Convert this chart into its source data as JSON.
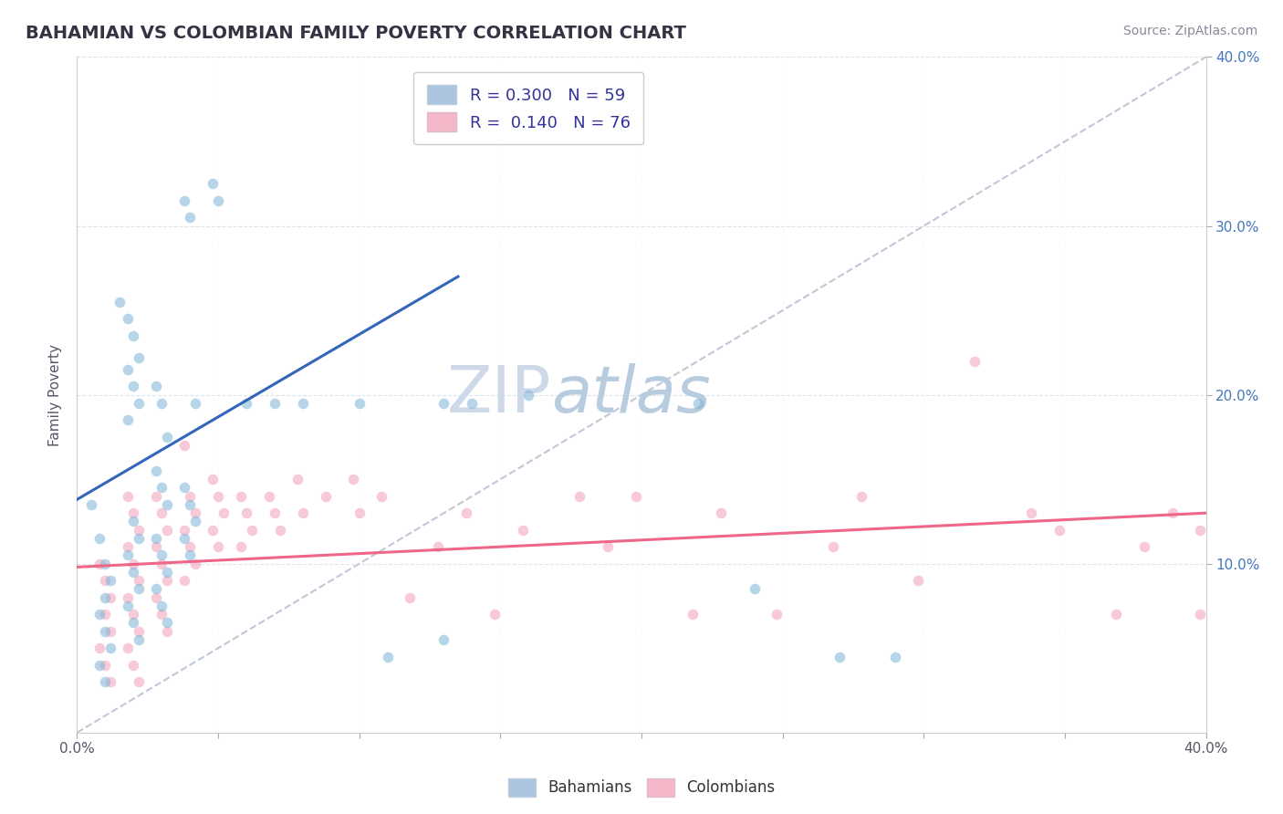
{
  "title": "BAHAMIAN VS COLOMBIAN FAMILY POVERTY CORRELATION CHART",
  "source_text": "Source: ZipAtlas.com",
  "ylabel": "Family Poverty",
  "legend_entries": [
    {
      "label": "R = 0.300   N = 59",
      "color": "#aac4e0"
    },
    {
      "label": "R =  0.140   N = 76",
      "color": "#f4b8c8"
    }
  ],
  "legend_bottom": [
    {
      "label": "Bahamians",
      "color": "#aac4e0"
    },
    {
      "label": "Colombians",
      "color": "#f4b8c8"
    }
  ],
  "bahamian_color": "#7ab4d8",
  "colombian_color": "#f4a0b8",
  "bahamian_line_color": "#3366bb",
  "colombian_line_color": "#ee6688",
  "diagonal_color": "#c0c8d8",
  "watermark_zip": "ZIP",
  "watermark_atlas": "atlas",
  "xlim": [
    0.0,
    0.4
  ],
  "ylim": [
    0.0,
    0.4
  ],
  "yticks": [
    0.1,
    0.2,
    0.3,
    0.4
  ],
  "xticks": [
    0.0,
    0.05,
    0.1,
    0.15,
    0.2,
    0.25,
    0.3,
    0.35,
    0.4
  ],
  "bahamian_points": [
    [
      0.005,
      0.135
    ],
    [
      0.008,
      0.115
    ],
    [
      0.01,
      0.1
    ],
    [
      0.012,
      0.09
    ],
    [
      0.01,
      0.08
    ],
    [
      0.008,
      0.07
    ],
    [
      0.01,
      0.06
    ],
    [
      0.012,
      0.05
    ],
    [
      0.008,
      0.04
    ],
    [
      0.01,
      0.03
    ],
    [
      0.015,
      0.255
    ],
    [
      0.018,
      0.245
    ],
    [
      0.02,
      0.235
    ],
    [
      0.022,
      0.222
    ],
    [
      0.018,
      0.215
    ],
    [
      0.02,
      0.205
    ],
    [
      0.022,
      0.195
    ],
    [
      0.018,
      0.185
    ],
    [
      0.02,
      0.125
    ],
    [
      0.022,
      0.115
    ],
    [
      0.018,
      0.105
    ],
    [
      0.02,
      0.095
    ],
    [
      0.022,
      0.085
    ],
    [
      0.018,
      0.075
    ],
    [
      0.02,
      0.065
    ],
    [
      0.022,
      0.055
    ],
    [
      0.028,
      0.205
    ],
    [
      0.03,
      0.195
    ],
    [
      0.032,
      0.175
    ],
    [
      0.028,
      0.155
    ],
    [
      0.03,
      0.145
    ],
    [
      0.032,
      0.135
    ],
    [
      0.028,
      0.115
    ],
    [
      0.03,
      0.105
    ],
    [
      0.032,
      0.095
    ],
    [
      0.028,
      0.085
    ],
    [
      0.03,
      0.075
    ],
    [
      0.032,
      0.065
    ],
    [
      0.038,
      0.315
    ],
    [
      0.04,
      0.305
    ],
    [
      0.042,
      0.195
    ],
    [
      0.038,
      0.145
    ],
    [
      0.04,
      0.135
    ],
    [
      0.042,
      0.125
    ],
    [
      0.038,
      0.115
    ],
    [
      0.04,
      0.105
    ],
    [
      0.048,
      0.325
    ],
    [
      0.05,
      0.315
    ],
    [
      0.06,
      0.195
    ],
    [
      0.07,
      0.195
    ],
    [
      0.08,
      0.195
    ],
    [
      0.1,
      0.195
    ],
    [
      0.11,
      0.045
    ],
    [
      0.13,
      0.195
    ],
    [
      0.14,
      0.195
    ],
    [
      0.16,
      0.2
    ],
    [
      0.22,
      0.195
    ],
    [
      0.24,
      0.085
    ],
    [
      0.27,
      0.045
    ],
    [
      0.13,
      0.055
    ],
    [
      0.29,
      0.045
    ]
  ],
  "colombian_points": [
    [
      0.008,
      0.1
    ],
    [
      0.01,
      0.09
    ],
    [
      0.012,
      0.08
    ],
    [
      0.01,
      0.07
    ],
    [
      0.012,
      0.06
    ],
    [
      0.008,
      0.05
    ],
    [
      0.01,
      0.04
    ],
    [
      0.012,
      0.03
    ],
    [
      0.018,
      0.14
    ],
    [
      0.02,
      0.13
    ],
    [
      0.022,
      0.12
    ],
    [
      0.018,
      0.11
    ],
    [
      0.02,
      0.1
    ],
    [
      0.022,
      0.09
    ],
    [
      0.018,
      0.08
    ],
    [
      0.02,
      0.07
    ],
    [
      0.022,
      0.06
    ],
    [
      0.018,
      0.05
    ],
    [
      0.02,
      0.04
    ],
    [
      0.022,
      0.03
    ],
    [
      0.028,
      0.14
    ],
    [
      0.03,
      0.13
    ],
    [
      0.032,
      0.12
    ],
    [
      0.028,
      0.11
    ],
    [
      0.03,
      0.1
    ],
    [
      0.032,
      0.09
    ],
    [
      0.028,
      0.08
    ],
    [
      0.03,
      0.07
    ],
    [
      0.032,
      0.06
    ],
    [
      0.038,
      0.17
    ],
    [
      0.04,
      0.14
    ],
    [
      0.042,
      0.13
    ],
    [
      0.038,
      0.12
    ],
    [
      0.04,
      0.11
    ],
    [
      0.042,
      0.1
    ],
    [
      0.038,
      0.09
    ],
    [
      0.048,
      0.15
    ],
    [
      0.05,
      0.14
    ],
    [
      0.052,
      0.13
    ],
    [
      0.048,
      0.12
    ],
    [
      0.05,
      0.11
    ],
    [
      0.058,
      0.14
    ],
    [
      0.06,
      0.13
    ],
    [
      0.062,
      0.12
    ],
    [
      0.058,
      0.11
    ],
    [
      0.068,
      0.14
    ],
    [
      0.07,
      0.13
    ],
    [
      0.072,
      0.12
    ],
    [
      0.078,
      0.15
    ],
    [
      0.08,
      0.13
    ],
    [
      0.088,
      0.14
    ],
    [
      0.098,
      0.15
    ],
    [
      0.1,
      0.13
    ],
    [
      0.108,
      0.14
    ],
    [
      0.118,
      0.08
    ],
    [
      0.128,
      0.11
    ],
    [
      0.138,
      0.13
    ],
    [
      0.148,
      0.07
    ],
    [
      0.158,
      0.12
    ],
    [
      0.178,
      0.14
    ],
    [
      0.188,
      0.11
    ],
    [
      0.198,
      0.14
    ],
    [
      0.218,
      0.07
    ],
    [
      0.228,
      0.13
    ],
    [
      0.248,
      0.07
    ],
    [
      0.268,
      0.11
    ],
    [
      0.278,
      0.14
    ],
    [
      0.298,
      0.09
    ],
    [
      0.318,
      0.22
    ],
    [
      0.338,
      0.13
    ],
    [
      0.348,
      0.12
    ],
    [
      0.368,
      0.07
    ],
    [
      0.378,
      0.11
    ],
    [
      0.388,
      0.13
    ],
    [
      0.398,
      0.12
    ],
    [
      0.398,
      0.07
    ]
  ],
  "bahamian_line": [
    [
      0.0,
      0.138
    ],
    [
      0.135,
      0.27
    ]
  ],
  "colombian_line": [
    [
      0.0,
      0.098
    ],
    [
      0.4,
      0.13
    ]
  ],
  "diagonal_line": [
    [
      0.0,
      0.0
    ],
    [
      0.4,
      0.4
    ]
  ],
  "grid_color": "#dde4ee",
  "background_color": "#ffffff",
  "title_color": "#333344",
  "title_fontsize": 14,
  "ylabel_fontsize": 11,
  "tick_fontsize": 11,
  "source_fontsize": 10,
  "point_size": 70,
  "point_alpha": 0.55
}
